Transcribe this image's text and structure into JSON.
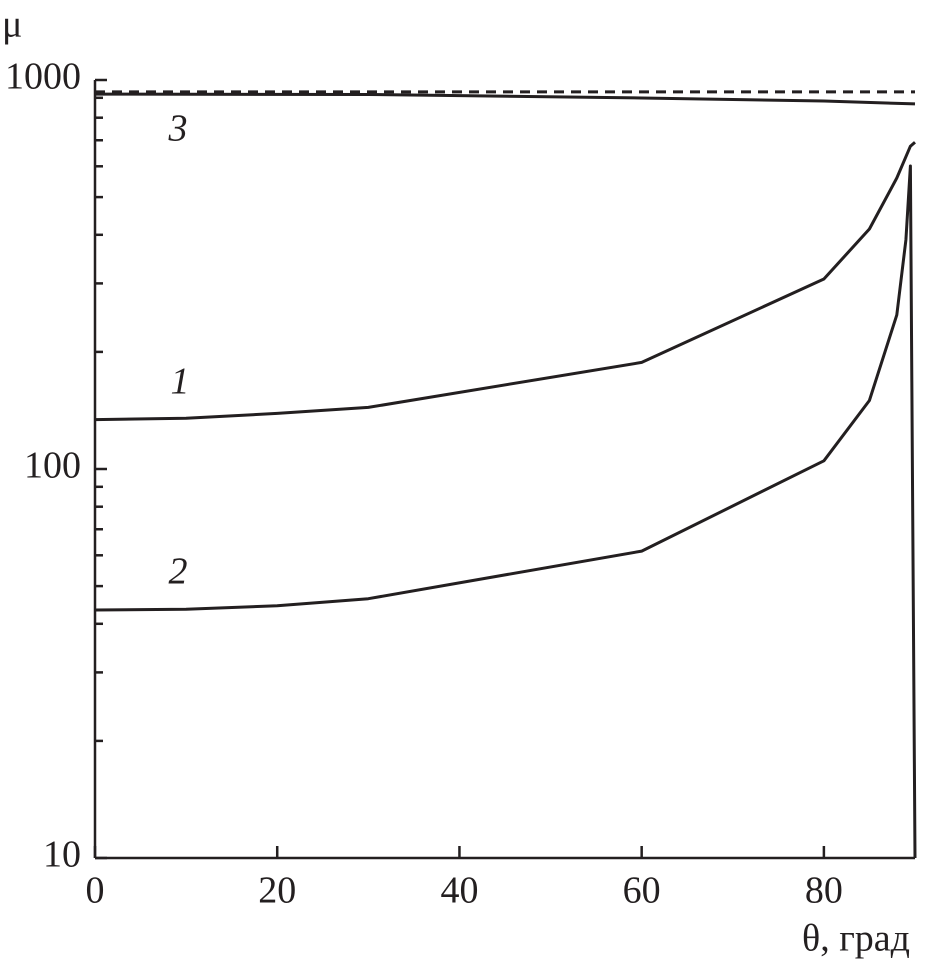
{
  "chart_data": {
    "type": "line",
    "y_label": "μ",
    "x_label": "θ, град",
    "xlim": [
      0,
      90
    ],
    "xticks": [
      0,
      20,
      40,
      60,
      80
    ],
    "ylim": [
      10,
      1000
    ],
    "yticks": [
      10,
      100,
      1000
    ],
    "log_y": true,
    "yminorticks": [
      20,
      30,
      40,
      50,
      60,
      70,
      80,
      90,
      200,
      300,
      400,
      500,
      600,
      700,
      800,
      900
    ],
    "series": [
      {
        "name": "1",
        "color": "#231f20",
        "x": [
          0,
          10,
          20,
          30,
          60,
          80,
          85,
          88,
          89.5,
          90
        ],
        "values": [
          134,
          135,
          139,
          144,
          188,
          308,
          414,
          560,
          676,
          692
        ]
      },
      {
        "name": "2",
        "color": "#231f20",
        "x": [
          0,
          10,
          20,
          30,
          60,
          80,
          85,
          88,
          89,
          89.5,
          90
        ],
        "values": [
          43.4,
          43.6,
          44.5,
          46.4,
          61.5,
          105,
          150,
          249,
          388,
          601,
          10
        ]
      },
      {
        "name": "3",
        "color": "#231f20",
        "x": [
          0,
          30,
          60,
          80,
          90
        ],
        "values": [
          920,
          918,
          899,
          883,
          868
        ]
      },
      {
        "color": "#231f20",
        "dash": true,
        "x": [
          0,
          90
        ],
        "values": [
          932,
          932
        ]
      }
    ]
  }
}
